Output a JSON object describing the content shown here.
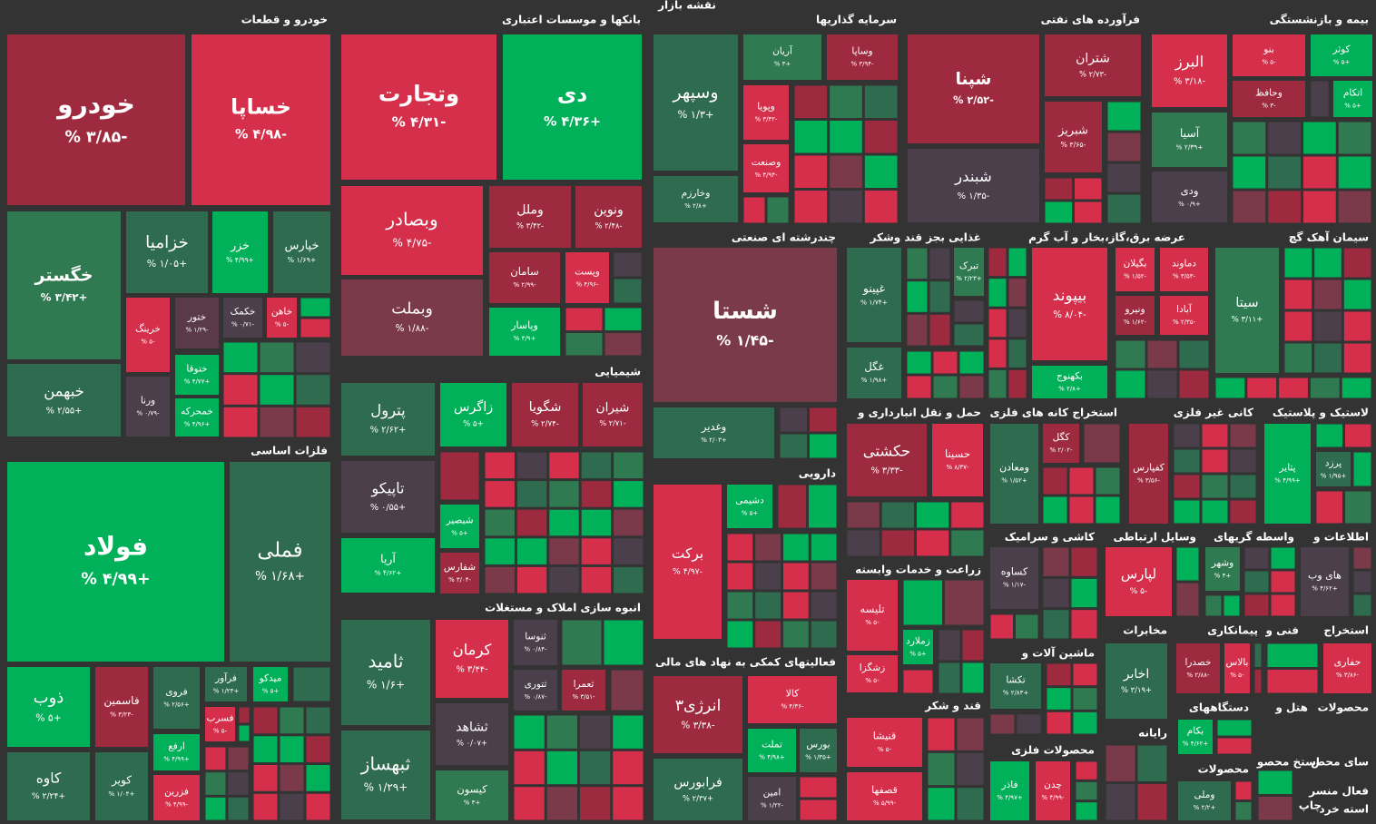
{
  "title": "نقشه بازار",
  "sectors": [
    {
      "name": "خودرو و قطعات",
      "tiles": [
        {
          "name": "خودرو",
          "change": "-۳/۸۵ %",
          "color": "#9e2a3f"
        },
        {
          "name": "خساپا",
          "change": "-۴/۹۸ %",
          "color": "#d62f4b"
        },
        {
          "name": "خگستر",
          "change": "+۳/۴۲ %",
          "color": "#2f7a50"
        },
        {
          "name": "خبهمن",
          "change": "+۲/۵۵ %",
          "color": "#2f6b4f"
        },
        {
          "name": "خزامیا",
          "change": "+۱/۰۵ %",
          "color": "#2f6b4f"
        },
        {
          "name": "خزر",
          "change": "+۴/۹۹ %",
          "color": "#00b15a"
        },
        {
          "name": "خپارس",
          "change": "+۱/۶۹ %",
          "color": "#2f6b4f"
        },
        {
          "name": "خرینگ",
          "change": "-۵ %",
          "color": "#d62f4b"
        },
        {
          "name": "ختور",
          "change": "-۱/۲۹ %",
          "color": "#5a3a48"
        },
        {
          "name": "خکمک",
          "change": "-۰/۷۱ %",
          "color": "#4a3f4a"
        },
        {
          "name": "خاهن",
          "change": "-۵ %",
          "color": "#d62f4b"
        },
        {
          "name": "ختوقا",
          "change": "+۴/۷۷ %",
          "color": "#00b15a"
        },
        {
          "name": "خمحرکه",
          "change": "+۴/۹۶ %",
          "color": "#00b15a"
        },
        {
          "name": "ورنا",
          "change": "-۰/۷۹ %",
          "color": "#4a3f4a"
        }
      ]
    },
    {
      "name": "بانکها و موسسات اعتباری",
      "tiles": [
        {
          "name": "وتجارت",
          "change": "-۴/۳۱ %",
          "color": "#d62f4b"
        },
        {
          "name": "دی",
          "change": "+۴/۳۶ %",
          "color": "#00b15a"
        },
        {
          "name": "وبصادر",
          "change": "-۴/۷۵ %",
          "color": "#d62f4b"
        },
        {
          "name": "وملل",
          "change": "-۳/۴۲ %",
          "color": "#9e2a3f"
        },
        {
          "name": "ونوین",
          "change": "-۲/۴۸ %",
          "color": "#9e2a3f"
        },
        {
          "name": "سامان",
          "change": "-۲/۹۹ %",
          "color": "#9e2a3f"
        },
        {
          "name": "وپست",
          "change": "-۴/۹۶ %",
          "color": "#d62f4b"
        },
        {
          "name": "وبملت",
          "change": "-۱/۸۸ %",
          "color": "#7a3a4a"
        },
        {
          "name": "وپاسار",
          "change": "+۴/۹ %",
          "color": "#00b15a"
        }
      ]
    },
    {
      "name": "سرمایه گذاریها",
      "tiles": [
        {
          "name": "وسپهر",
          "change": "+۱/۳ %",
          "color": "#2f6b4f"
        },
        {
          "name": "وخارزم",
          "change": "+۲/۸ %",
          "color": "#2f6b4f"
        },
        {
          "name": "آریان",
          "change": "+۳ %",
          "color": "#2f7a50"
        },
        {
          "name": "وساپا",
          "change": "-۳/۹۴ %",
          "color": "#9e2a3f"
        },
        {
          "name": "وپویا",
          "change": "-۳/۳۲ %",
          "color": "#d62f4b"
        },
        {
          "name": "وصنعت",
          "change": "-۴/۹۴ %",
          "color": "#d62f4b"
        }
      ]
    },
    {
      "name": "فرآورده های نفتی",
      "tiles": [
        {
          "name": "شپنا",
          "change": "-۲/۵۲ %",
          "color": "#9e2a3f"
        },
        {
          "name": "شبندر",
          "change": "-۱/۳۵ %",
          "color": "#4a3f4a"
        },
        {
          "name": "شتران",
          "change": "-۲/۷۳ %",
          "color": "#9e2a3f"
        },
        {
          "name": "شبریز",
          "change": "-۳/۶۵ %",
          "color": "#9e2a3f"
        }
      ]
    },
    {
      "name": "بیمه و بازنشستگی",
      "tiles": [
        {
          "name": "البرز",
          "change": "-۳/۱۸ %",
          "color": "#d62f4b"
        },
        {
          "name": "بنو",
          "change": "-۵ %",
          "color": "#d62f4b"
        },
        {
          "name": "کوثر",
          "change": "+۵ %",
          "color": "#00b15a"
        },
        {
          "name": "وحافظ",
          "change": "-۳ %",
          "color": "#9e2a3f"
        },
        {
          "name": "اتکام",
          "change": "+۵ %",
          "color": "#00b15a"
        },
        {
          "name": "آسیا",
          "change": "+۲/۳۹ %",
          "color": "#2f7a50"
        },
        {
          "name": "ودی",
          "change": "+۰/۹ %",
          "color": "#4a3f4a"
        }
      ]
    },
    {
      "name": "فلزات اساسی",
      "tiles": [
        {
          "name": "فولاد",
          "change": "+۴/۹۹ %",
          "color": "#00b15a"
        },
        {
          "name": "فملی",
          "change": "+۱/۶۸ %",
          "color": "#2f6b4f"
        },
        {
          "name": "ذوب",
          "change": "+۵ %",
          "color": "#00b15a"
        },
        {
          "name": "کاوه",
          "change": "+۲/۲۴ %",
          "color": "#2f6b4f"
        },
        {
          "name": "فاسمین",
          "change": "-۳/۲۳ %",
          "color": "#9e2a3f"
        },
        {
          "name": "کویر",
          "change": "+۱/۰۴ %",
          "color": "#2f6b4f"
        },
        {
          "name": "فروی",
          "change": "+۲/۵۶ %",
          "color": "#2f6b4f"
        },
        {
          "name": "فرآور",
          "change": "+۱/۲۳ %",
          "color": "#2f6b4f"
        },
        {
          "name": "میدکو",
          "change": "+۵ %",
          "color": "#00b15a"
        },
        {
          "name": "فسرب",
          "change": "-۵ %",
          "color": "#d62f4b"
        },
        {
          "name": "ارفع",
          "change": "+۴/۹۹ %",
          "color": "#00b15a"
        },
        {
          "name": "فزرین",
          "change": "-۴/۹۹ %",
          "color": "#d62f4b"
        }
      ]
    },
    {
      "name": "شیمیایی",
      "tiles": [
        {
          "name": "پترول",
          "change": "+۲/۶۲ %",
          "color": "#2f6b4f"
        },
        {
          "name": "تاپیکو",
          "change": "+۰/۵۵ %",
          "color": "#4a3f4a"
        },
        {
          "name": "آریا",
          "change": "+۴/۶۲ %",
          "color": "#00b15a"
        },
        {
          "name": "زاگرس",
          "change": "+۵ %",
          "color": "#00b15a"
        },
        {
          "name": "شگویا",
          "change": "-۲/۷۴ %",
          "color": "#9e2a3f"
        },
        {
          "name": "شیران",
          "change": "-۲/۷۱ %",
          "color": "#9e2a3f"
        },
        {
          "name": "شبصیر",
          "change": "+۵ %",
          "color": "#00b15a"
        },
        {
          "name": "شفارس",
          "change": "-۳/۰۴ %",
          "color": "#9e2a3f"
        }
      ]
    },
    {
      "name": "انبوه سازی املاک و مستغلات",
      "tiles": [
        {
          "name": "ثامید",
          "change": "+۱/۶ %",
          "color": "#2f6b4f"
        },
        {
          "name": "ثبهساز",
          "change": "+۱/۲۹ %",
          "color": "#2f6b4f"
        },
        {
          "name": "کرمان",
          "change": "-۳/۴۴ %",
          "color": "#d62f4b"
        },
        {
          "name": "ثنوسا",
          "change": "-۰/۸۴ %",
          "color": "#4a3f4a"
        },
        {
          "name": "ثتوری",
          "change": "-۰/۸۷ %",
          "color": "#4a3f4a"
        },
        {
          "name": "ثعمرا",
          "change": "-۳/۵۱ %",
          "color": "#9e2a3f"
        },
        {
          "name": "ثشاهد",
          "change": "+۰/۰۷ %",
          "color": "#4a3f4a"
        },
        {
          "name": "کیسون",
          "change": "+۳ %",
          "color": "#2f7a50"
        }
      ]
    },
    {
      "name": "چندرشته ای صنعتی",
      "tiles": [
        {
          "name": "شستا",
          "change": "-۱/۴۵ %",
          "color": "#7a3a4a"
        },
        {
          "name": "وغدیر",
          "change": "+۲/۰۳ %",
          "color": "#2f6b4f"
        }
      ]
    },
    {
      "name": "دارویی",
      "tiles": [
        {
          "name": "برکت",
          "change": "-۴/۹۷ %",
          "color": "#d62f4b"
        },
        {
          "name": "دشیمی",
          "change": "+۵ %",
          "color": "#00b15a"
        }
      ]
    },
    {
      "name": "فعالیتهای کمکی به نهاد های مالی",
      "tiles": [
        {
          "name": "انرژی۳",
          "change": "-۳/۳۸ %",
          "color": "#9e2a3f"
        },
        {
          "name": "فرابورس",
          "change": "+۲/۳۷ %",
          "color": "#2f6b4f"
        },
        {
          "name": "کالا",
          "change": "-۴/۳۶ %",
          "color": "#d62f4b"
        },
        {
          "name": "تملت",
          "change": "+۴/۹۸ %",
          "color": "#00b15a"
        },
        {
          "name": "بورس",
          "change": "+۱/۳۵ %",
          "color": "#2f6b4f"
        },
        {
          "name": "امین",
          "change": "-۱/۲۲ %",
          "color": "#4a3f4a"
        }
      ]
    },
    {
      "name": "غذایی بجز قند وشکر",
      "tiles": [
        {
          "name": "غپینو",
          "change": "+۱/۷۴ %",
          "color": "#2f6b4f"
        },
        {
          "name": "غگل",
          "change": "+۱/۹۸ %",
          "color": "#2f6b4f"
        },
        {
          "name": "تبرک",
          "change": "+۲/۲۳ %",
          "color": "#2f7a50"
        }
      ]
    },
    {
      "name": "عرضه برق،گاز،بخار و آب گرم",
      "tiles": [
        {
          "name": "بیپوند",
          "change": "-۸/۰۴ %",
          "color": "#d62f4b"
        },
        {
          "name": "بکهنوج",
          "change": "+۲/۸ %",
          "color": "#00b15a"
        }
      ]
    },
    {
      "name": "سیمان آهک گچ",
      "tiles": [
        {
          "name": "بگیلان",
          "change": "-۱/۵۲ %",
          "color": "#d62f4b"
        },
        {
          "name": "دماوند",
          "change": "-۳/۵۳ %",
          "color": "#d62f4b"
        },
        {
          "name": "ونیرو",
          "change": "-۱/۶۲ %",
          "color": "#9e2a3f"
        },
        {
          "name": "آبادا",
          "change": "-۲/۳۵ %",
          "color": "#d62f4b"
        },
        {
          "name": "سیتا",
          "change": "+۳/۱۱ %",
          "color": "#2f7a50"
        }
      ]
    },
    {
      "name": "حمل و نقل انبارداری و",
      "tiles": [
        {
          "name": "حکشتی",
          "change": "-۳/۳۳ %",
          "color": "#9e2a3f"
        },
        {
          "name": "حسینا",
          "change": "-۸/۳۷ %",
          "color": "#d62f4b"
        }
      ]
    },
    {
      "name": "زراعت و خدمات وابسته",
      "tiles": [
        {
          "name": "تلیسه",
          "change": "-۵ %",
          "color": "#d62f4b"
        },
        {
          "name": "زملارد",
          "change": "+۵ %",
          "color": "#00b15a"
        },
        {
          "name": "زشگزا",
          "change": "-۵ %",
          "color": "#d62f4b"
        }
      ]
    },
    {
      "name": "قند و شکر",
      "tiles": [
        {
          "name": "قنیشا",
          "change": "-۵ %",
          "color": "#d62f4b"
        },
        {
          "name": "قصفها",
          "change": "-۵/۹۹ %",
          "color": "#d62f4b"
        }
      ]
    },
    {
      "name": "استخراج کانه های فلزی",
      "tiles": [
        {
          "name": "ومعادن",
          "change": "+۱/۵۲ %",
          "color": "#2f6b4f"
        },
        {
          "name": "کگل",
          "change": "-۲/۰۲ %",
          "color": "#9e2a3f"
        }
      ]
    },
    {
      "name": "کانی غیر فلزی",
      "tiles": [
        {
          "name": "کفپارس",
          "change": "-۳/۵۶ %",
          "color": "#9e2a3f"
        }
      ]
    },
    {
      "name": "لاستیک و پلاستیک",
      "tiles": [
        {
          "name": "پتایر",
          "change": "+۴/۹۹ %",
          "color": "#00b15a"
        },
        {
          "name": "پرزد",
          "change": "+۱/۹۵ %",
          "color": "#2f6b4f"
        }
      ]
    },
    {
      "name": "کاشی و سرامیک",
      "tiles": [
        {
          "name": "کساوه",
          "change": "-۱/۱۷ %",
          "color": "#4a3f4a"
        }
      ]
    },
    {
      "name": "وسایل ارتباطی",
      "tiles": [
        {
          "name": "لپارس",
          "change": "-۵ %",
          "color": "#d62f4b"
        }
      ]
    },
    {
      "name": "واسطه گریهای",
      "tiles": [
        {
          "name": "وشهر",
          "change": "+۴ %",
          "color": "#2f7a50"
        }
      ]
    },
    {
      "name": "اطلاعات و",
      "tiles": [
        {
          "name": "های وب",
          "change": "+۴/۶۲ %",
          "color": "#4a3f4a"
        }
      ]
    },
    {
      "name": "ماشین آلات و",
      "tiles": [
        {
          "name": "تکشا",
          "change": "+۲/۸۳ %",
          "color": "#2f6b4f"
        }
      ]
    },
    {
      "name": "مخابرات",
      "tiles": [
        {
          "name": "اخابر",
          "change": "+۳/۱۹ %",
          "color": "#2f6b4f"
        }
      ]
    },
    {
      "name": "پیمانکاری",
      "tiles": [
        {
          "name": "خصدرا",
          "change": "-۲/۸۸ %",
          "color": "#9e2a3f"
        },
        {
          "name": "بالاس",
          "change": "-۵ %",
          "color": "#d62f4b"
        }
      ]
    },
    {
      "name": "فنی و",
      "tiles": []
    },
    {
      "name": "استخراج",
      "tiles": [
        {
          "name": "حفاری",
          "change": "-۳/۸۶ %",
          "color": "#d62f4b"
        }
      ]
    },
    {
      "name": "محصولات فلزی",
      "tiles": [
        {
          "name": "فاذر",
          "change": "+۴/۹۷ %",
          "color": "#00b15a"
        },
        {
          "name": "چدن",
          "change": "-۴/۹۹ %",
          "color": "#d62f4b"
        }
      ]
    },
    {
      "name": "رایانه",
      "tiles": []
    },
    {
      "name": "دستگاههای",
      "tiles": [
        {
          "name": "بکام",
          "change": "+۴/۶۲ %",
          "color": "#00b15a"
        }
      ]
    },
    {
      "name": "محصولات",
      "tiles": [
        {
          "name": "وملی",
          "change": "+۲/۲ %",
          "color": "#2f6b4f"
        }
      ]
    },
    {
      "name": "هتل و",
      "tiles": []
    },
    {
      "name": "محصولات",
      "tiles": []
    },
    {
      "name": "استخ محصو",
      "tiles": []
    },
    {
      "name": "سای محص",
      "tiles": []
    },
    {
      "name": "فعال منسر",
      "tiles": []
    },
    {
      "name": "چاپ",
      "tiles": []
    },
    {
      "name": "استه خرد",
      "tiles": []
    }
  ]
}
